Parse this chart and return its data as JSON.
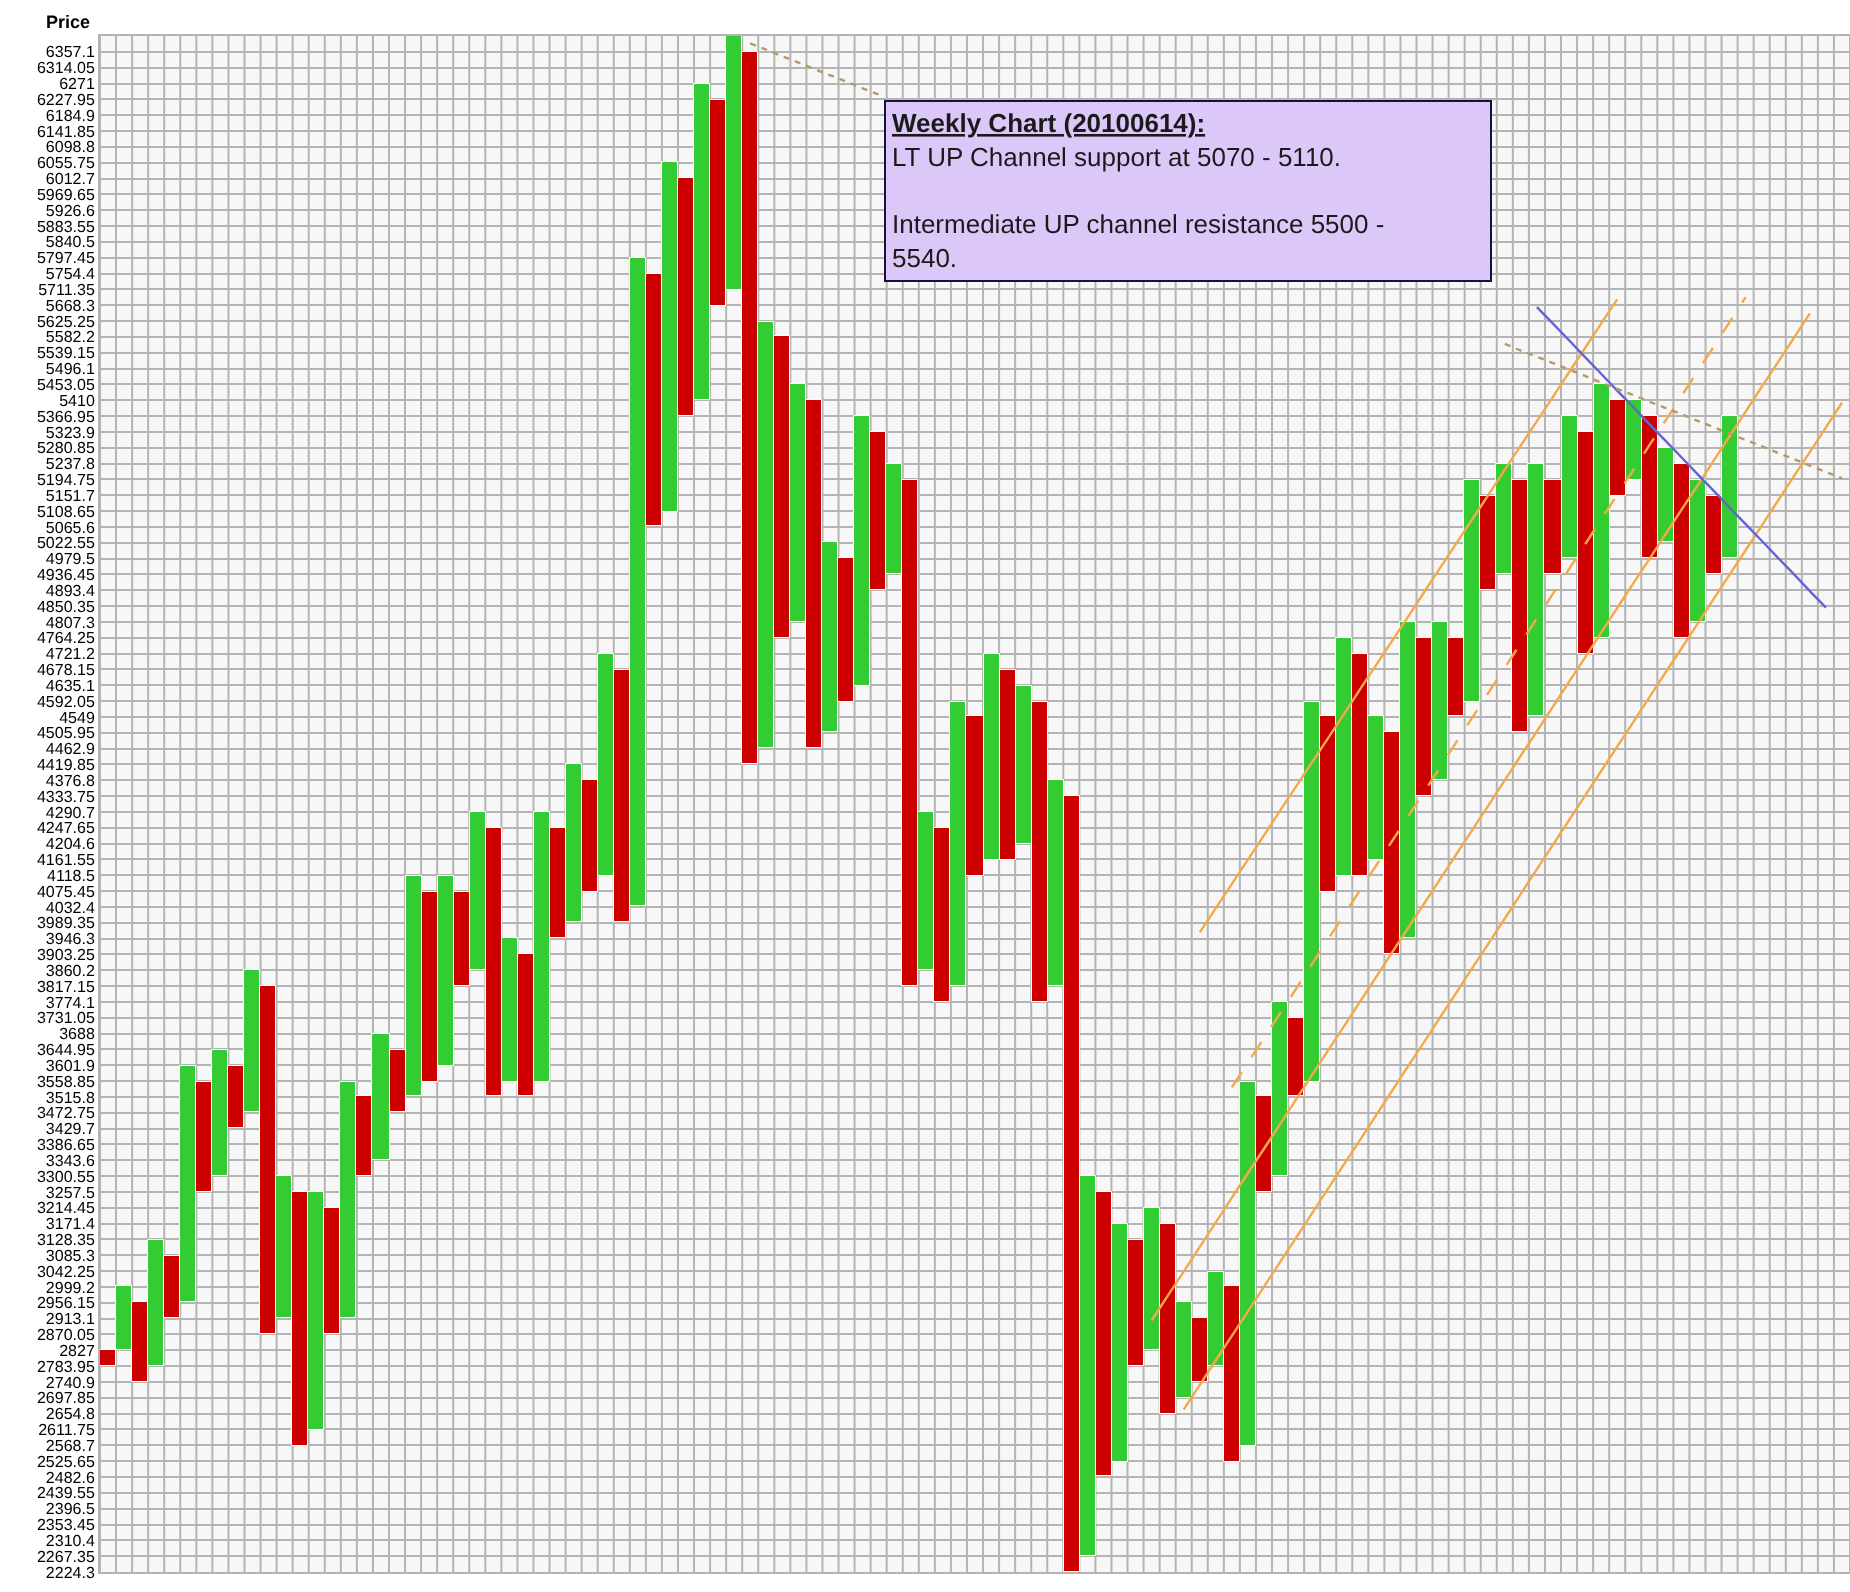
{
  "chart_data": {
    "type": "bar",
    "ylabel": "Price",
    "annotations": [
      "Weekly Chart (20100614):",
      "LT UP Channel support at 5070 - 5110.",
      "Intermediate UP channel resistance 5500 - 5540."
    ],
    "ylim": [
      2224.3,
      6400.15
    ],
    "tick_labels": "y",
    "grid": true,
    "yticks": [
      2224.3,
      2267.35,
      2310.4,
      2353.45,
      2396.5,
      2439.55,
      2482.6,
      2525.65,
      2568.7,
      2611.75,
      2654.8,
      2697.85,
      2740.9,
      2783.95,
      2827,
      2870.05,
      2913.1,
      2956.15,
      2999.2,
      3042.25,
      3085.3,
      3128.35,
      3171.4,
      3214.45,
      3257.5,
      3300.55,
      3343.6,
      3386.65,
      3429.7,
      3472.75,
      3515.8,
      3558.85,
      3601.9,
      3644.95,
      3688,
      3731.05,
      3774.1,
      3817.15,
      3860.2,
      3903.25,
      3946.3,
      3989.35,
      4032.4,
      4075.45,
      4118.5,
      4161.55,
      4204.6,
      4247.65,
      4290.7,
      4333.75,
      4376.8,
      4419.85,
      4462.9,
      4505.95,
      4549,
      4592.05,
      4635.1,
      4678.15,
      4721.2,
      4764.25,
      4807.3,
      4850.35,
      4893.4,
      4936.45,
      4979.5,
      5022.55,
      5065.6,
      5108.65,
      5151.7,
      5194.75,
      5237.8,
      5280.85,
      5323.9,
      5366.95,
      5410,
      5453.05,
      5496.1,
      5539.15,
      5582.2,
      5625.25,
      5668.3,
      5711.35,
      5754.4,
      5797.45,
      5840.5,
      5883.55,
      5926.6,
      5969.65,
      6012.7,
      6055.75,
      6098.8,
      6141.85,
      6184.9,
      6227.95,
      6271,
      6314.05,
      6357.1
    ],
    "categories": [
      null,
      null,
      null,
      null,
      null,
      null,
      null,
      null,
      null,
      null,
      null,
      null,
      null,
      null,
      null,
      null,
      null,
      null,
      null,
      null,
      null,
      null,
      null,
      null,
      null,
      null,
      null,
      null,
      null,
      null,
      null,
      null,
      null,
      null,
      null,
      null,
      null,
      null,
      null,
      null,
      null,
      null,
      null,
      null,
      null,
      null,
      null,
      null,
      null,
      null,
      null,
      null,
      null,
      null,
      null,
      null,
      null,
      null,
      null,
      null,
      null,
      null,
      null,
      null,
      null,
      null,
      null,
      null,
      null,
      null,
      null,
      null,
      null,
      null,
      null,
      null,
      null,
      null,
      null,
      null,
      null,
      null,
      null,
      null,
      null,
      null,
      null,
      null,
      null,
      null,
      null,
      null,
      null,
      null,
      null,
      null,
      null,
      null,
      null,
      null,
      null,
      null,
      null,
      null,
      null,
      null,
      null,
      null,
      null
    ],
    "series": [
      {
        "base": [
          2783.95,
          2827,
          2740.9,
          2783.95,
          2913.1,
          2956.15,
          3257.5,
          3300.55,
          3429.7,
          3472.75,
          2870.05,
          2913.1,
          2568.7,
          2611.75,
          2870.05,
          2913.1,
          3300.55,
          3343.6,
          3472.75,
          3515.8,
          3558.85,
          3601.9,
          3817.15,
          3860.2,
          3515.8,
          3558.85,
          3515.8,
          3558.85,
          3946.3,
          3989.35,
          4075.45,
          4118.5,
          3989.35,
          4032.4,
          5065.6,
          5108.65,
          5366.95,
          5410,
          5668.3,
          5711.35,
          4419.85,
          4462.9,
          4764.25,
          4807.3,
          4462.9,
          4505.95,
          4592.05,
          4635.1,
          4893.4,
          4936.45,
          3817.15,
          3860.2,
          3774.1,
          3817.15,
          4118.5,
          4161.55,
          4161.55,
          4204.6,
          3774.1,
          3817.15,
          2224.3,
          2267.35,
          2482.6,
          2525.65,
          2783.95,
          2827,
          2654.8,
          2697.85,
          2740.9,
          2783.95,
          2525.65,
          2568.7,
          3257.5,
          3300.55,
          3515.8,
          3558.85,
          4075.45,
          4118.5,
          4118.5,
          4161.55,
          3903.25,
          3946.3,
          4333.75,
          4376.8,
          4549,
          4592.05,
          4893.4,
          4936.45,
          4505.95,
          4549,
          4936.45,
          4979.5,
          4721.2,
          4764.25,
          5151.7,
          5194.75,
          4979.5,
          5022.55,
          4764.25,
          4807.3,
          4936.45,
          4979.5,
          null,
          null,
          null,
          null,
          null,
          null,
          null
        ],
        "values": [
          43.05,
          172.2,
          215.25,
          344.4,
          172.2,
          645.75,
          301.35,
          344.4,
          172.2,
          387.45,
          947.1,
          387.45,
          688.8,
          645.75,
          344.4,
          645.75,
          215.25,
          344.4,
          172.2,
          602.7,
          516.6,
          516.6,
          258.3,
          430.5,
          731.85,
          387.45,
          387.45,
          731.85,
          301.35,
          430.5,
          301.35,
          602.7,
          688.8,
          1765.05,
          688.8,
          947.1,
          645.75,
          861,
          559.65,
          688.8,
          1937.25,
          1162.35,
          817.95,
          645.75,
          947.1,
          516.6,
          387.45,
          731.85,
          430.5,
          301.35,
          1377.6,
          430.5,
          473.55,
          774.9,
          430.5,
          559.65,
          516.6,
          430.5,
          817.95,
          559.65,
          2109.45,
          1033.2,
          774.9,
          645.75,
          344.4,
          387.45,
          516.6,
          258.3,
          172.2,
          258.3,
          473.55,
          990.15,
          258.3,
          473.55,
          215.25,
          1033.2,
          473.55,
          645.75,
          602.7,
          387.45,
          602.7,
          861,
          430.5,
          430.5,
          215.25,
          602.7,
          258.3,
          301.35,
          688.8,
          688.8,
          258.3,
          387.45,
          602.7,
          688.8,
          258.3,
          215.25,
          387.45,
          258.3,
          473.55,
          387.45,
          215.25,
          387.45,
          null,
          null,
          null,
          null,
          null,
          null,
          null
        ],
        "colors": [
          "#cc0000",
          "#33cc33",
          "#cc0000",
          "#33cc33",
          "#cc0000",
          "#33cc33",
          "#cc0000",
          "#33cc33",
          "#cc0000",
          "#33cc33",
          "#cc0000",
          "#33cc33",
          "#cc0000",
          "#33cc33",
          "#cc0000",
          "#33cc33",
          "#cc0000",
          "#33cc33",
          "#cc0000",
          "#33cc33",
          "#cc0000",
          "#33cc33",
          "#cc0000",
          "#33cc33",
          "#cc0000",
          "#33cc33",
          "#cc0000",
          "#33cc33",
          "#cc0000",
          "#33cc33",
          "#cc0000",
          "#33cc33",
          "#cc0000",
          "#33cc33",
          "#cc0000",
          "#33cc33",
          "#cc0000",
          "#33cc33",
          "#cc0000",
          "#33cc33",
          "#cc0000",
          "#33cc33",
          "#cc0000",
          "#33cc33",
          "#cc0000",
          "#33cc33",
          "#cc0000",
          "#33cc33",
          "#cc0000",
          "#33cc33",
          "#cc0000",
          "#33cc33",
          "#cc0000",
          "#33cc33",
          "#cc0000",
          "#33cc33",
          "#cc0000",
          "#33cc33",
          "#cc0000",
          "#33cc33",
          "#cc0000",
          "#33cc33",
          "#cc0000",
          "#33cc33",
          "#cc0000",
          "#33cc33",
          "#cc0000",
          "#33cc33",
          "#cc0000",
          "#33cc33",
          "#cc0000",
          "#33cc33",
          "#cc0000",
          "#33cc33",
          "#cc0000",
          "#33cc33",
          "#cc0000",
          "#33cc33",
          "#cc0000",
          "#33cc33",
          "#cc0000",
          "#33cc33",
          "#cc0000",
          "#33cc33",
          "#cc0000",
          "#33cc33",
          "#cc0000",
          "#33cc33",
          "#cc0000",
          "#33cc33",
          "#cc0000",
          "#33cc33",
          "#cc0000",
          "#33cc33",
          "#cc0000",
          "#33cc33",
          "#cc0000",
          "#33cc33",
          "#cc0000",
          "#33cc33",
          "#cc0000",
          "#33cc33",
          null,
          null,
          null,
          null,
          null,
          null,
          null
        ]
      },
      {
        "type": "line",
        "color": "#f4a84c",
        "line_style": "solid",
        "values": [
          null,
          null,
          null,
          null,
          null,
          null,
          null,
          null,
          null,
          null,
          null,
          null,
          null,
          null,
          null,
          null,
          null,
          null,
          null,
          null,
          null,
          null,
          null,
          null,
          null,
          null,
          null,
          null,
          null,
          null,
          null,
          null,
          null,
          null,
          null,
          null,
          null,
          null,
          null,
          null,
          null,
          null,
          null,
          null,
          null,
          null,
          null,
          null,
          null,
          null,
          null,
          null,
          null,
          null,
          null,
          null,
          null,
          null,
          null,
          null,
          null,
          null,
          null,
          null,
          null,
          null,
          null,
          null,
          3963,
          4029,
          4095,
          4161,
          4227,
          4294,
          4360,
          4426,
          4492,
          4558,
          4625,
          4691,
          4757,
          4823,
          4890,
          4956,
          5022,
          5088,
          5154,
          5221,
          5287,
          5353,
          5419,
          5486,
          5552,
          5618,
          5684,
          null,
          null,
          null,
          null,
          null,
          null,
          null,
          null,
          null,
          null,
          null,
          null,
          null,
          null
        ]
      },
      {
        "type": "line",
        "color": "#f4a84c",
        "line_style": "dashed",
        "values": [
          null,
          null,
          null,
          null,
          null,
          null,
          null,
          null,
          null,
          null,
          null,
          null,
          null,
          null,
          null,
          null,
          null,
          null,
          null,
          null,
          null,
          null,
          null,
          null,
          null,
          null,
          null,
          null,
          null,
          null,
          null,
          null,
          null,
          null,
          null,
          null,
          null,
          null,
          null,
          null,
          null,
          null,
          null,
          null,
          null,
          null,
          null,
          null,
          null,
          null,
          null,
          null,
          null,
          null,
          null,
          null,
          null,
          null,
          null,
          null,
          null,
          null,
          null,
          null,
          null,
          null,
          null,
          null,
          null,
          null,
          3542,
          3609,
          3676,
          3743,
          3810,
          3878,
          3945,
          4012,
          4079,
          4146,
          4213,
          4280,
          4347,
          4414,
          4482,
          4549,
          4616,
          4683,
          4750,
          4817,
          4884,
          4951,
          5018,
          5086,
          5153,
          5220,
          5287,
          5354,
          5421,
          5488,
          5555,
          5622,
          5690,
          null,
          null,
          null,
          null,
          null,
          null
        ]
      },
      {
        "type": "line",
        "color": "#f4a84c",
        "line_style": "solid",
        "values": [
          null,
          null,
          null,
          null,
          null,
          null,
          null,
          null,
          null,
          null,
          null,
          null,
          null,
          null,
          null,
          null,
          null,
          null,
          null,
          null,
          null,
          null,
          null,
          null,
          null,
          null,
          null,
          null,
          null,
          null,
          null,
          null,
          null,
          null,
          null,
          null,
          null,
          null,
          null,
          null,
          null,
          null,
          null,
          null,
          null,
          null,
          null,
          null,
          null,
          null,
          null,
          null,
          null,
          null,
          null,
          null,
          null,
          null,
          null,
          null,
          null,
          null,
          null,
          null,
          null,
          2908,
          2975,
          3041,
          3108,
          3175,
          3242,
          3309,
          3375,
          3442,
          3509,
          3576,
          3643,
          3709,
          3776,
          3843,
          3910,
          3977,
          4043,
          4110,
          4177,
          4243,
          4310,
          4377,
          4444,
          4510,
          4577,
          4644,
          4711,
          4778,
          4845,
          4912,
          4978,
          5045,
          5112,
          5178,
          5245,
          5312,
          5379,
          5446,
          5512,
          5579,
          5646,
          null,
          null
        ]
      },
      {
        "type": "line",
        "color": "#f4a84c",
        "line_style": "solid",
        "values": [
          null,
          null,
          null,
          null,
          null,
          null,
          null,
          null,
          null,
          null,
          null,
          null,
          null,
          null,
          null,
          null,
          null,
          null,
          null,
          null,
          null,
          null,
          null,
          null,
          null,
          null,
          null,
          null,
          null,
          null,
          null,
          null,
          null,
          null,
          null,
          null,
          null,
          null,
          null,
          null,
          null,
          null,
          null,
          null,
          null,
          null,
          null,
          null,
          null,
          null,
          null,
          null,
          null,
          null,
          null,
          null,
          null,
          null,
          null,
          null,
          null,
          null,
          null,
          null,
          null,
          null,
          null,
          2666,
          2733,
          2800,
          2866,
          2933,
          3000,
          3067,
          3133,
          3200,
          3267,
          3334,
          3400,
          3467,
          3534,
          3601,
          3667,
          3734,
          3801,
          3868,
          3934,
          4001,
          4068,
          4135,
          4201,
          4268,
          4335,
          4402,
          4468,
          4535,
          4602,
          4669,
          4735,
          4802,
          4869,
          4936,
          5002,
          5069,
          5136,
          5203,
          5269,
          5336,
          5403
        ]
      },
      {
        "type": "line",
        "color": "#6464d8",
        "line_style": "solid",
        "values": [
          null,
          null,
          null,
          null,
          null,
          null,
          null,
          null,
          null,
          null,
          null,
          null,
          null,
          null,
          null,
          null,
          null,
          null,
          null,
          null,
          null,
          null,
          null,
          null,
          null,
          null,
          null,
          null,
          null,
          null,
          null,
          null,
          null,
          null,
          null,
          null,
          null,
          null,
          null,
          null,
          null,
          null,
          null,
          null,
          null,
          null,
          null,
          null,
          null,
          null,
          null,
          null,
          null,
          null,
          null,
          null,
          null,
          null,
          null,
          null,
          null,
          null,
          null,
          null,
          null,
          null,
          null,
          null,
          null,
          null,
          null,
          null,
          null,
          null,
          null,
          null,
          null,
          null,
          null,
          null,
          null,
          null,
          null,
          null,
          null,
          null,
          null,
          null,
          null,
          5663,
          5618,
          5573,
          5527,
          5482,
          5436,
          5391,
          5345,
          5300,
          5255,
          5209,
          5164,
          5118,
          5073,
          5028,
          4982,
          4937,
          4891,
          4846,
          null
        ]
      },
      {
        "type": "line",
        "color": "#b49a6a",
        "line_style": "dotted",
        "values": [
          null,
          null,
          null,
          null,
          null,
          null,
          null,
          null,
          null,
          null,
          null,
          null,
          null,
          null,
          null,
          null,
          null,
          null,
          null,
          null,
          null,
          null,
          null,
          null,
          null,
          null,
          null,
          null,
          null,
          null,
          null,
          null,
          null,
          null,
          null,
          null,
          null,
          null,
          null,
          null,
          6380,
          6363,
          6345,
          6328,
          6310,
          6293,
          6276,
          6258,
          6241,
          null,
          null,
          null,
          null,
          null,
          null,
          null,
          null,
          null,
          null,
          null,
          null,
          null,
          null,
          null,
          null,
          null,
          null,
          null,
          null,
          null,
          null,
          null,
          null,
          null,
          null,
          null,
          null,
          null,
          null,
          null,
          null,
          null,
          null,
          null,
          null,
          null,
          null,
          5563,
          5545,
          5528,
          5511,
          5493,
          5476,
          5458,
          5441,
          5424,
          5406,
          5389,
          5372,
          5354,
          5337,
          5319,
          5302,
          5285,
          5267,
          5250,
          5232,
          5215,
          5198
        ]
      }
    ]
  }
}
